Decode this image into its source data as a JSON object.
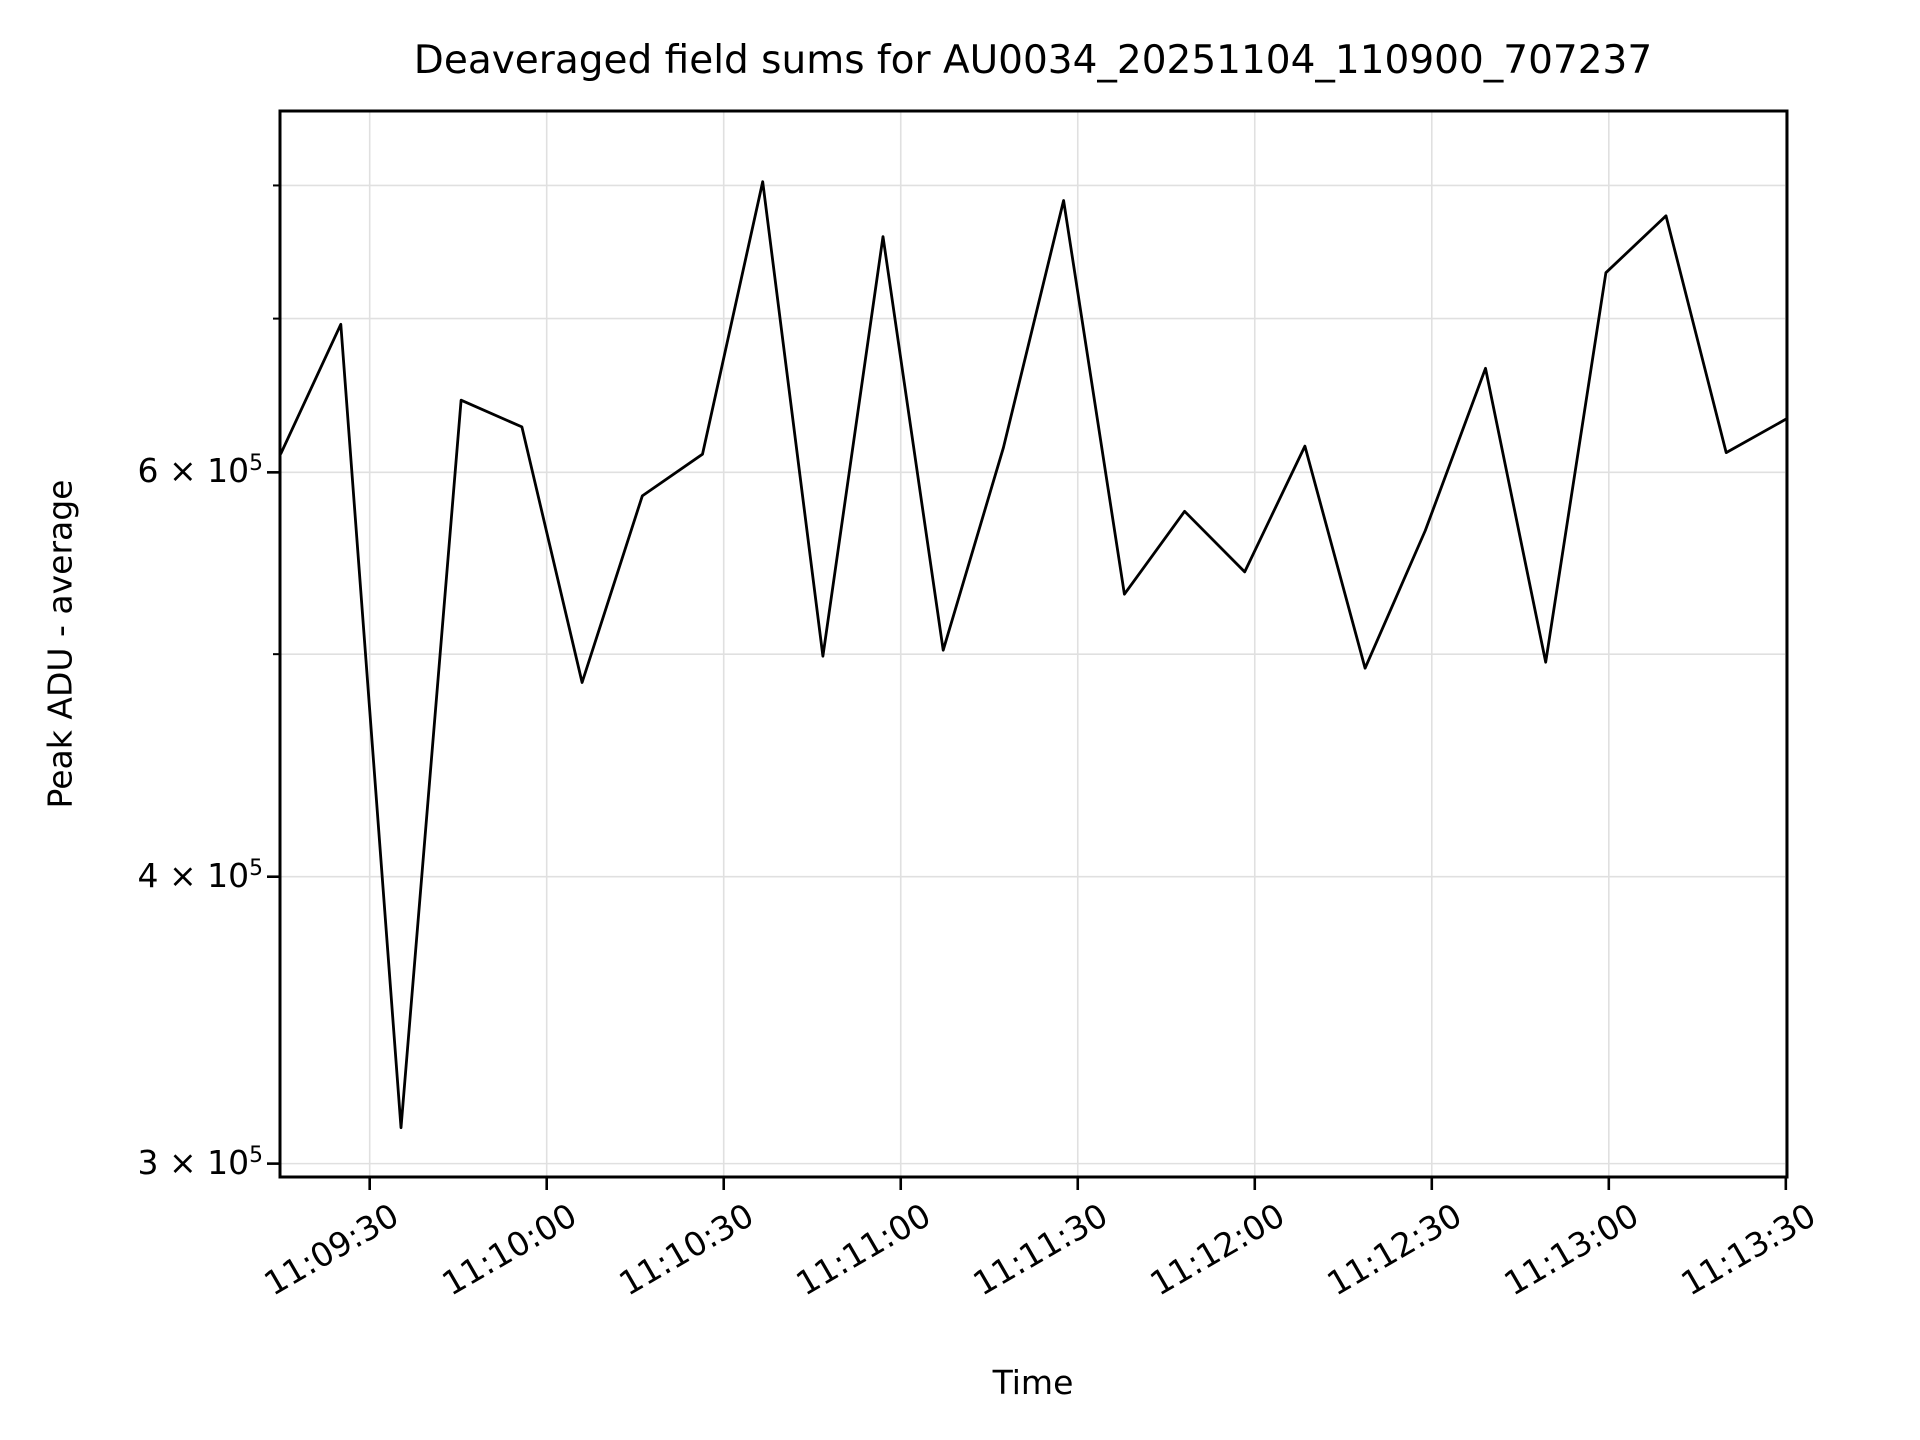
{
  "figure": {
    "title": "Deaveraged field sums for AU0034_20251104_110900_707237",
    "xlabel": "Time",
    "ylabel": "Peak ADU - average"
  },
  "chart_data": {
    "type": "line",
    "title": "Deaveraged field sums for AU0034_20251104_110900_707237",
    "xlabel": "Time",
    "ylabel": "Peak ADU - average",
    "yscale": "log",
    "grid": true,
    "legend": "none",
    "line_color": "#000000",
    "grid_color": "#e0e0e0",
    "background": "#ffffff",
    "ylim": [
      296000,
      862000
    ],
    "xlim_seconds": [
      14.8,
      270.2
    ],
    "x_ticks": [
      {
        "t": 30,
        "label": "11:09:30"
      },
      {
        "t": 60,
        "label": "11:10:00"
      },
      {
        "t": 90,
        "label": "11:10:30"
      },
      {
        "t": 120,
        "label": "11:11:00"
      },
      {
        "t": 150,
        "label": "11:11:30"
      },
      {
        "t": 180,
        "label": "11:12:00"
      },
      {
        "t": 210,
        "label": "11:12:30"
      },
      {
        "t": 240,
        "label": "11:13:00"
      },
      {
        "t": 270,
        "label": "11:13:30"
      }
    ],
    "y_ticks_major": [
      {
        "value": 300000,
        "base": "3 × 10",
        "exp": "5"
      },
      {
        "value": 400000,
        "base": "4 × 10",
        "exp": "5"
      },
      {
        "value": 600000,
        "base": "6 × 10",
        "exp": "5"
      }
    ],
    "y_ticks_minor": [
      500000,
      700000,
      800000
    ],
    "points": [
      {
        "t": 14.9,
        "time": "11:09:15",
        "value": 611000
      },
      {
        "t": 25.1,
        "time": "11:09:25",
        "value": 696000
      },
      {
        "t": 35.3,
        "time": "11:09:35",
        "value": 311000
      },
      {
        "t": 45.5,
        "time": "11:09:46",
        "value": 645000
      },
      {
        "t": 55.8,
        "time": "11:09:56",
        "value": 628000
      },
      {
        "t": 66.0,
        "time": "11:10:06",
        "value": 486000
      },
      {
        "t": 76.2,
        "time": "11:10:16",
        "value": 586000
      },
      {
        "t": 86.4,
        "time": "11:10:26",
        "value": 611000
      },
      {
        "t": 96.6,
        "time": "11:10:37",
        "value": 803000
      },
      {
        "t": 106.8,
        "time": "11:10:47",
        "value": 499000
      },
      {
        "t": 117.0,
        "time": "11:10:57",
        "value": 760000
      },
      {
        "t": 127.2,
        "time": "11:11:07",
        "value": 502000
      },
      {
        "t": 137.4,
        "time": "11:11:17",
        "value": 615000
      },
      {
        "t": 147.6,
        "time": "11:11:28",
        "value": 788000
      },
      {
        "t": 157.9,
        "time": "11:11:38",
        "value": 531000
      },
      {
        "t": 168.1,
        "time": "11:11:48",
        "value": 577000
      },
      {
        "t": 178.3,
        "time": "11:11:58",
        "value": 543000
      },
      {
        "t": 188.5,
        "time": "11:12:08",
        "value": 616000
      },
      {
        "t": 198.7,
        "time": "11:12:19",
        "value": 493000
      },
      {
        "t": 208.9,
        "time": "11:12:29",
        "value": 566000
      },
      {
        "t": 219.1,
        "time": "11:12:39",
        "value": 666000
      },
      {
        "t": 229.3,
        "time": "11:12:49",
        "value": 496000
      },
      {
        "t": 239.5,
        "time": "11:12:59",
        "value": 733000
      },
      {
        "t": 249.7,
        "time": "11:13:10",
        "value": 776000
      },
      {
        "t": 259.9,
        "time": "11:13:20",
        "value": 612000
      },
      {
        "t": 270.1,
        "time": "11:13:30",
        "value": 633000
      }
    ]
  }
}
